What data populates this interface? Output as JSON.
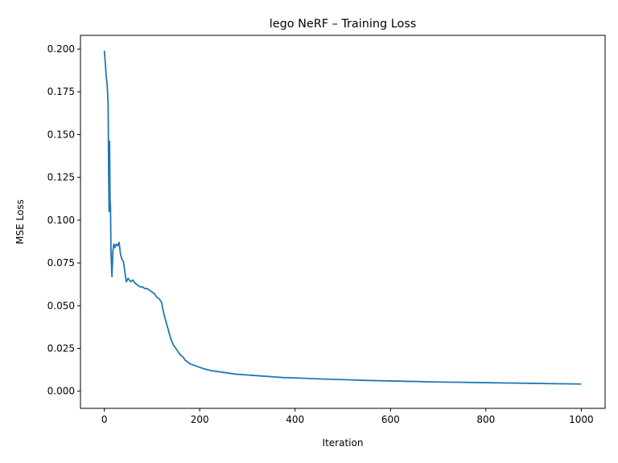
{
  "chart_data": {
    "type": "line",
    "title": "lego NeRF – Training Loss",
    "xlabel": "Iteration",
    "ylabel": "MSE Loss",
    "xlim": [
      -50,
      1050
    ],
    "ylim": [
      -0.01,
      0.208
    ],
    "xticks": [
      0,
      200,
      400,
      600,
      800,
      1000
    ],
    "xtick_labels": [
      "0",
      "200",
      "400",
      "600",
      "800",
      "1000"
    ],
    "yticks": [
      0.0,
      0.025,
      0.05,
      0.075,
      0.1,
      0.125,
      0.15,
      0.175,
      0.2
    ],
    "ytick_labels": [
      "0.000",
      "0.025",
      "0.050",
      "0.075",
      "0.100",
      "0.125",
      "0.150",
      "0.175",
      "0.200"
    ],
    "grid": false,
    "legend": false,
    "series_color": "#1f77b4",
    "series": [
      {
        "x": [
          0,
          2,
          4,
          6,
          8,
          9,
          10,
          11,
          12,
          13,
          14,
          15,
          16,
          18,
          20,
          22,
          25,
          28,
          31,
          34,
          37,
          40,
          43,
          46,
          50,
          55,
          60,
          65,
          70,
          75,
          80,
          85,
          90,
          95,
          100,
          105,
          110,
          115,
          120,
          125,
          130,
          135,
          140,
          145,
          150,
          155,
          160,
          165,
          170,
          180,
          190,
          200,
          210,
          225,
          250,
          275,
          300,
          325,
          350,
          375,
          400,
          450,
          500,
          550,
          600,
          650,
          700,
          750,
          800,
          850,
          900,
          950,
          1000
        ],
        "y": [
          0.199,
          0.192,
          0.184,
          0.179,
          0.168,
          0.13,
          0.105,
          0.146,
          0.112,
          0.107,
          0.081,
          0.074,
          0.067,
          0.082,
          0.086,
          0.084,
          0.086,
          0.085,
          0.087,
          0.08,
          0.077,
          0.076,
          0.07,
          0.064,
          0.066,
          0.064,
          0.065,
          0.063,
          0.062,
          0.061,
          0.061,
          0.06,
          0.06,
          0.059,
          0.058,
          0.057,
          0.055,
          0.054,
          0.052,
          0.045,
          0.04,
          0.035,
          0.03,
          0.027,
          0.025,
          0.023,
          0.021,
          0.02,
          0.018,
          0.016,
          0.015,
          0.014,
          0.013,
          0.012,
          0.011,
          0.01,
          0.0095,
          0.009,
          0.0085,
          0.008,
          0.0078,
          0.0072,
          0.0068,
          0.0063,
          0.006,
          0.0057,
          0.0054,
          0.0052,
          0.005,
          0.0048,
          0.0046,
          0.0044,
          0.0042
        ]
      }
    ]
  }
}
